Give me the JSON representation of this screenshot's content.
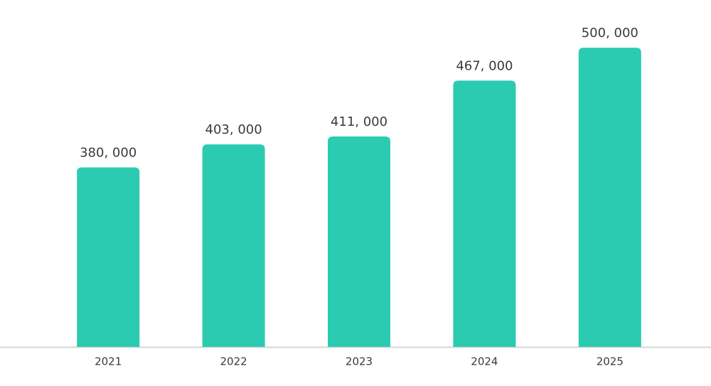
{
  "chart_data": {
    "type": "bar",
    "categories": [
      "2021",
      "2022",
      "2023",
      "2024",
      "2025"
    ],
    "values": [
      380000,
      403000,
      411000,
      467000,
      500000
    ],
    "value_labels": [
      "380, 000",
      "403, 000",
      "411, 000",
      "467, 000",
      "500, 000"
    ],
    "color": "#2bcbb1",
    "ylim": [
      200000,
      520000
    ]
  }
}
